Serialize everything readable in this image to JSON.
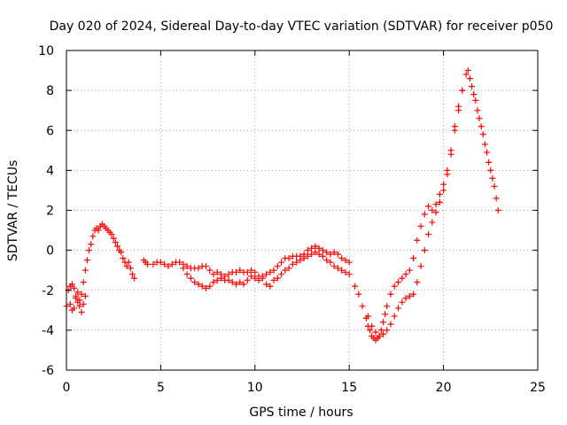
{
  "chart_data": {
    "type": "scatter",
    "title": "Day 020 of 2024, Sidereal Day-to-day VTEC variation (SDTVAR) for receiver p050",
    "xlabel": "GPS time / hours",
    "ylabel": "SDTVAR / TECUs",
    "xlim": [
      0,
      25
    ],
    "ylim": [
      -6,
      10
    ],
    "xticks": [
      0,
      5,
      10,
      15,
      20,
      25
    ],
    "yticks": [
      -6,
      -4,
      -2,
      0,
      2,
      4,
      6,
      8,
      10
    ],
    "grid": true,
    "marker": "+",
    "series": [
      {
        "name": "SDTVAR",
        "color": "#ff0000",
        "x": [
          0.0,
          0.1,
          0.2,
          0.3,
          0.4,
          0.5,
          0.6,
          0.7,
          0.8,
          0.9,
          1.0,
          1.1,
          1.2,
          1.3,
          1.4,
          1.5,
          1.6,
          1.7,
          1.8,
          1.9,
          2.0,
          2.1,
          2.2,
          2.3,
          2.4,
          2.5,
          2.6,
          2.7,
          2.8,
          2.9,
          3.0,
          3.1,
          3.2,
          3.3,
          3.4,
          3.5,
          3.6,
          4.1,
          4.2,
          4.3,
          4.6,
          4.8,
          5.0,
          5.2,
          5.4,
          5.6,
          5.8,
          6.0,
          6.2,
          6.4,
          6.6,
          6.8,
          7.0,
          7.2,
          7.4,
          7.6,
          7.8,
          8.0,
          8.2,
          8.4,
          8.6,
          8.8,
          9.0,
          9.2,
          9.4,
          9.6,
          9.8,
          10.0,
          10.2,
          10.4,
          10.6,
          10.8,
          11.0,
          11.2,
          11.4,
          11.6,
          11.8,
          12.0,
          12.2,
          12.4,
          12.6,
          12.8,
          13.0,
          13.2,
          13.4,
          13.6,
          13.8,
          14.0,
          14.2,
          14.4,
          14.6,
          14.8,
          15.0,
          6.2,
          6.4,
          6.6,
          6.8,
          7.0,
          7.2,
          7.4,
          7.6,
          7.8,
          8.0,
          8.2,
          8.4,
          8.6,
          8.8,
          9.0,
          9.2,
          9.4,
          9.6,
          9.8,
          10.0,
          10.2,
          10.4,
          10.6,
          10.8,
          11.0,
          11.2,
          11.4,
          11.6,
          11.8,
          12.0,
          12.2,
          12.4,
          12.6,
          12.8,
          13.0,
          13.2,
          13.4,
          13.6,
          13.8,
          14.0,
          14.2,
          14.4,
          14.6,
          14.8,
          15.0,
          15.3,
          15.5,
          15.7,
          15.9,
          16.0,
          16.1,
          16.2,
          16.3,
          16.4,
          16.5,
          16.6,
          16.7,
          16.8,
          16.9,
          17.0,
          17.2,
          17.4,
          17.6,
          17.8,
          18.0,
          18.2,
          18.4,
          18.6,
          18.8,
          19.0,
          19.2,
          19.4,
          19.6,
          19.8,
          20.0,
          20.2,
          20.4,
          20.6,
          20.8,
          21.0,
          21.2,
          21.3,
          21.4,
          21.5,
          21.6,
          21.7,
          21.8,
          21.9,
          22.0,
          22.1,
          22.2,
          22.3,
          22.4,
          22.5,
          22.6,
          22.7,
          22.8,
          22.9,
          16.0,
          16.2,
          16.4,
          16.6,
          16.8,
          17.0,
          17.2,
          17.4,
          17.6,
          17.8,
          18.0,
          18.2,
          18.4,
          18.6,
          18.8,
          19.0,
          19.2,
          19.4,
          19.6,
          19.8,
          20.0,
          20.2,
          20.4,
          20.6,
          20.8,
          21.0,
          0.2,
          0.3,
          0.4,
          0.5,
          0.6,
          0.7,
          0.8,
          0.9,
          1.0
        ],
        "y": [
          -2.8,
          -2.0,
          -1.8,
          -1.7,
          -1.9,
          -2.3,
          -2.6,
          -2.5,
          -2.2,
          -1.6,
          -1.0,
          -0.5,
          0.0,
          0.3,
          0.7,
          1.0,
          1.1,
          1.0,
          1.2,
          1.3,
          1.2,
          1.1,
          1.0,
          0.9,
          0.8,
          0.6,
          0.4,
          0.2,
          0.0,
          -0.1,
          -0.4,
          -0.6,
          -0.8,
          -0.6,
          -0.9,
          -1.2,
          -1.4,
          -0.5,
          -0.6,
          -0.7,
          -0.7,
          -0.6,
          -0.6,
          -0.7,
          -0.8,
          -0.7,
          -0.6,
          -0.6,
          -0.7,
          -0.8,
          -0.9,
          -0.9,
          -0.9,
          -0.8,
          -0.8,
          -1.0,
          -1.2,
          -1.1,
          -1.2,
          -1.3,
          -1.2,
          -1.1,
          -1.1,
          -1.0,
          -1.1,
          -1.1,
          -1.0,
          -1.1,
          -1.3,
          -1.3,
          -1.2,
          -1.1,
          -1.0,
          -0.8,
          -0.6,
          -0.4,
          -0.4,
          -0.3,
          -0.3,
          -0.3,
          -0.2,
          0.0,
          0.1,
          0.2,
          0.1,
          0.0,
          -0.1,
          -0.2,
          -0.1,
          -0.2,
          -0.4,
          -0.5,
          -0.6,
          -0.9,
          -1.2,
          -1.4,
          -1.6,
          -1.7,
          -1.8,
          -1.9,
          -1.8,
          -1.6,
          -1.5,
          -1.4,
          -1.5,
          -1.5,
          -1.6,
          -1.7,
          -1.6,
          -1.7,
          -1.5,
          -1.3,
          -1.4,
          -1.5,
          -1.4,
          -1.7,
          -1.8,
          -1.5,
          -1.4,
          -1.2,
          -1.0,
          -0.9,
          -0.7,
          -0.6,
          -0.5,
          -0.4,
          -0.3,
          -0.2,
          -0.1,
          -0.2,
          -0.3,
          -0.5,
          -0.6,
          -0.8,
          -0.9,
          -1.0,
          -1.1,
          -1.2,
          -1.8,
          -2.2,
          -2.8,
          -3.4,
          -3.8,
          -4.0,
          -4.3,
          -4.4,
          -4.5,
          -4.4,
          -4.3,
          -4.0,
          -3.6,
          -3.2,
          -2.8,
          -2.2,
          -1.8,
          -1.6,
          -1.4,
          -1.2,
          -1.0,
          -0.4,
          0.5,
          1.2,
          1.8,
          2.2,
          2.0,
          2.3,
          2.8,
          3.3,
          4.0,
          5.0,
          6.2,
          7.2,
          8.0,
          8.8,
          9.0,
          8.6,
          8.2,
          7.8,
          7.5,
          7.0,
          6.6,
          6.2,
          5.8,
          5.3,
          4.9,
          4.4,
          4.0,
          3.6,
          3.2,
          2.6,
          2.0,
          -3.3,
          -3.8,
          -4.1,
          -4.3,
          -4.2,
          -4.0,
          -3.7,
          -3.3,
          -2.9,
          -2.6,
          -2.4,
          -2.3,
          -2.2,
          -1.6,
          -0.8,
          0.0,
          0.8,
          1.4,
          1.9,
          2.4,
          3.0,
          3.8,
          4.8,
          6.0,
          7.0,
          8.0,
          -2.7,
          -3.0,
          -2.9,
          -2.4,
          -2.1,
          -2.8,
          -3.1,
          -2.7,
          -2.3
        ]
      }
    ]
  }
}
